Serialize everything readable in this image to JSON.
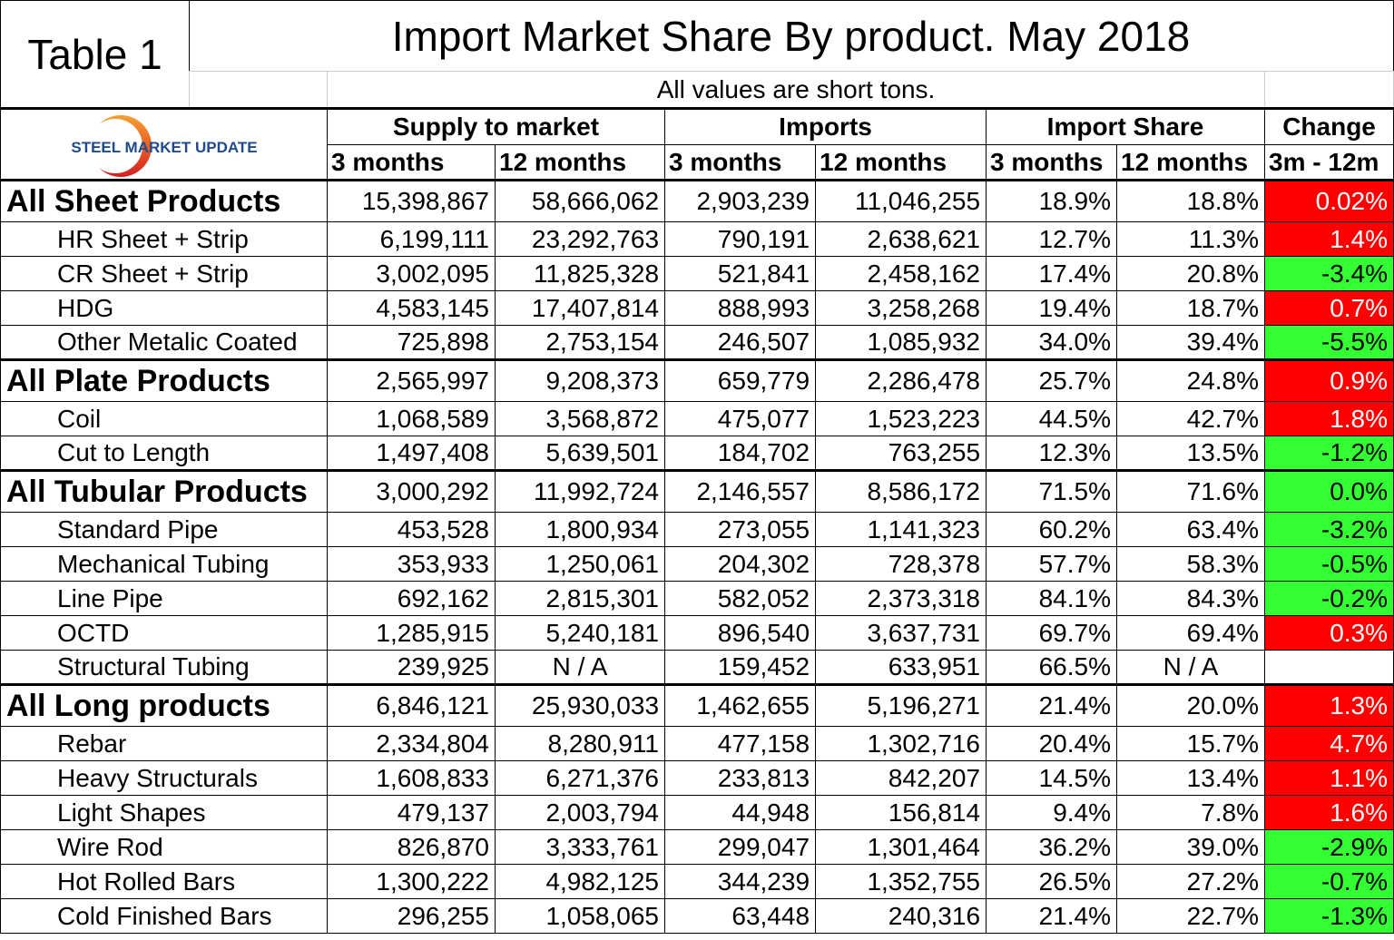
{
  "table_label": "Table 1",
  "title": "Import Market Share By product. May 2018",
  "subtitle": "All values are short tons.",
  "logo_text": "STEEL MARKET UPDATE",
  "colors": {
    "increase": "#ff0000",
    "decrease": "#33ff33"
  },
  "headers": {
    "groups": [
      "Supply to market",
      "Imports",
      "Import Share",
      "Change"
    ],
    "sub": [
      "3 months",
      "12 months",
      "3 months",
      "12 months",
      "3 months",
      "12 months",
      "3m - 12m"
    ]
  },
  "rows": [
    {
      "type": "group",
      "name": "All Sheet Products",
      "v": [
        "15,398,867",
        "58,666,062",
        "2,903,239",
        "11,046,255",
        "18.9%",
        "18.8%",
        "0.02%"
      ],
      "dir": "up"
    },
    {
      "type": "sub",
      "name": "HR Sheet + Strip",
      "v": [
        "6,199,111",
        "23,292,763",
        "790,191",
        "2,638,621",
        "12.7%",
        "11.3%",
        "1.4%"
      ],
      "dir": "up"
    },
    {
      "type": "sub",
      "name": "CR Sheet + Strip",
      "v": [
        "3,002,095",
        "11,825,328",
        "521,841",
        "2,458,162",
        "17.4%",
        "20.8%",
        "-3.4%"
      ],
      "dir": "down"
    },
    {
      "type": "sub",
      "name": "HDG",
      "v": [
        "4,583,145",
        "17,407,814",
        "888,993",
        "3,258,268",
        "19.4%",
        "18.7%",
        "0.7%"
      ],
      "dir": "up"
    },
    {
      "type": "sub",
      "name": "Other Metalic Coated",
      "v": [
        "725,898",
        "2,753,154",
        "246,507",
        "1,085,932",
        "34.0%",
        "39.4%",
        "-5.5%"
      ],
      "dir": "down"
    },
    {
      "type": "group",
      "name": "All Plate Products",
      "v": [
        "2,565,997",
        "9,208,373",
        "659,779",
        "2,286,478",
        "25.7%",
        "24.8%",
        "0.9%"
      ],
      "dir": "up"
    },
    {
      "type": "sub",
      "name": "Coil",
      "v": [
        "1,068,589",
        "3,568,872",
        "475,077",
        "1,523,223",
        "44.5%",
        "42.7%",
        "1.8%"
      ],
      "dir": "up"
    },
    {
      "type": "sub",
      "name": "Cut to Length",
      "v": [
        "1,497,408",
        "5,639,501",
        "184,702",
        "763,255",
        "12.3%",
        "13.5%",
        "-1.2%"
      ],
      "dir": "down"
    },
    {
      "type": "group",
      "name": "All Tubular Products",
      "v": [
        "3,000,292",
        "11,992,724",
        "2,146,557",
        "8,586,172",
        "71.5%",
        "71.6%",
        "0.0%"
      ],
      "dir": "down"
    },
    {
      "type": "sub",
      "name": "Standard Pipe",
      "v": [
        "453,528",
        "1,800,934",
        "273,055",
        "1,141,323",
        "60.2%",
        "63.4%",
        "-3.2%"
      ],
      "dir": "down"
    },
    {
      "type": "sub",
      "name": "Mechanical Tubing",
      "v": [
        "353,933",
        "1,250,061",
        "204,302",
        "728,378",
        "57.7%",
        "58.3%",
        "-0.5%"
      ],
      "dir": "down"
    },
    {
      "type": "sub",
      "name": "Line Pipe",
      "v": [
        "692,162",
        "2,815,301",
        "582,052",
        "2,373,318",
        "84.1%",
        "84.3%",
        "-0.2%"
      ],
      "dir": "down"
    },
    {
      "type": "sub",
      "name": "OCTD",
      "v": [
        "1,285,915",
        "5,240,181",
        "896,540",
        "3,637,731",
        "69.7%",
        "69.4%",
        "0.3%"
      ],
      "dir": "up"
    },
    {
      "type": "sub",
      "name": "Structural Tubing",
      "v": [
        "239,925",
        "N / A",
        "159,452",
        "633,951",
        "66.5%",
        "N / A",
        ""
      ],
      "dir": "none"
    },
    {
      "type": "group",
      "name": "All Long products",
      "v": [
        "6,846,121",
        "25,930,033",
        "1,462,655",
        "5,196,271",
        "21.4%",
        "20.0%",
        "1.3%"
      ],
      "dir": "up"
    },
    {
      "type": "sub",
      "name": "Rebar",
      "v": [
        "2,334,804",
        "8,280,911",
        "477,158",
        "1,302,716",
        "20.4%",
        "15.7%",
        "4.7%"
      ],
      "dir": "up"
    },
    {
      "type": "sub",
      "name": "Heavy Structurals",
      "v": [
        "1,608,833",
        "6,271,376",
        "233,813",
        "842,207",
        "14.5%",
        "13.4%",
        "1.1%"
      ],
      "dir": "up"
    },
    {
      "type": "sub",
      "name": "Light Shapes",
      "v": [
        "479,137",
        "2,003,794",
        "44,948",
        "156,814",
        "9.4%",
        "7.8%",
        "1.6%"
      ],
      "dir": "up"
    },
    {
      "type": "sub",
      "name": "Wire Rod",
      "v": [
        "826,870",
        "3,333,761",
        "299,047",
        "1,301,464",
        "36.2%",
        "39.0%",
        "-2.9%"
      ],
      "dir": "down"
    },
    {
      "type": "sub",
      "name": "Hot Rolled Bars",
      "v": [
        "1,300,222",
        "4,982,125",
        "344,239",
        "1,352,755",
        "26.5%",
        "27.2%",
        "-0.7%"
      ],
      "dir": "down"
    },
    {
      "type": "sub",
      "name": "Cold Finished Bars",
      "v": [
        "296,255",
        "1,058,065",
        "63,448",
        "240,316",
        "21.4%",
        "22.7%",
        "-1.3%"
      ],
      "dir": "down"
    }
  ]
}
